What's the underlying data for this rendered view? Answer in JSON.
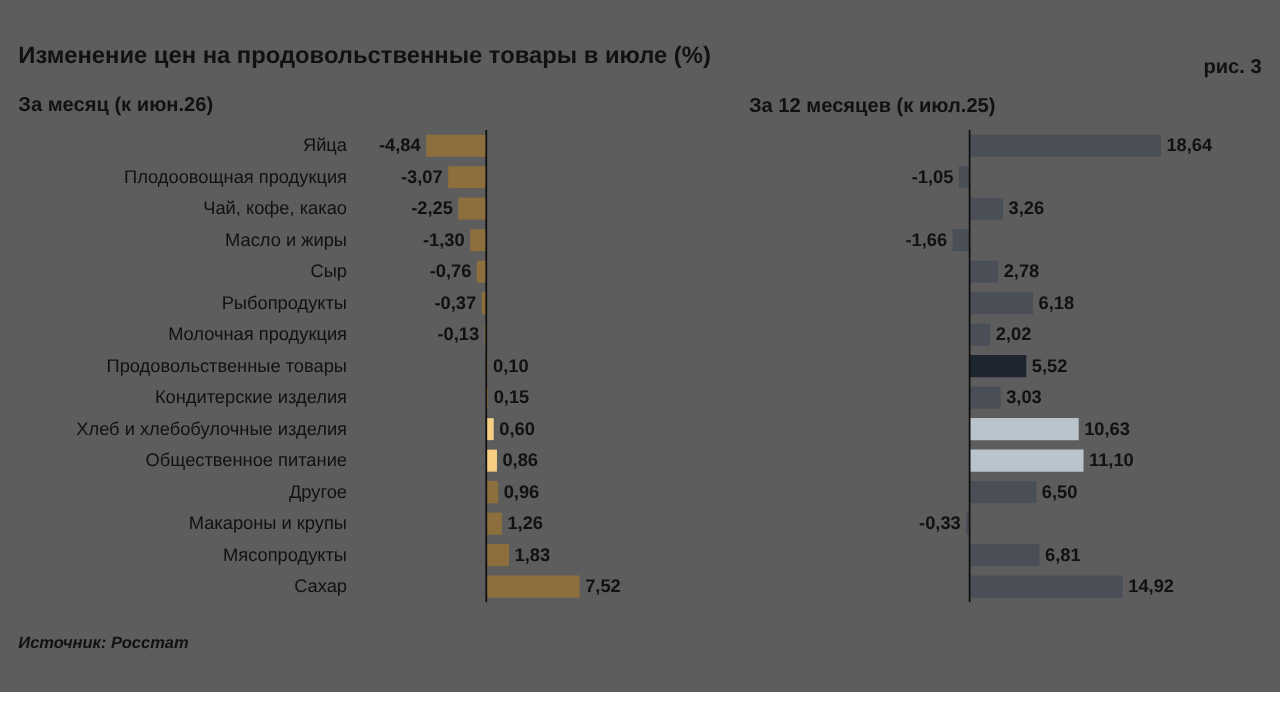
{
  "chart_data": [
    {
      "type": "bar",
      "orientation": "horizontal",
      "title": "Изменение цен на продовольственные товары в июле (%)",
      "subtitle": "За месяц (к июн.26)",
      "annotations": [
        "рис. 3",
        "Источник: Росстат"
      ],
      "tick_labels": "y",
      "categories": [
        "Яйца",
        "Плодоовощная продукция",
        "Чай, кофе, какао",
        "Масло и жиры",
        "Сыр",
        "Рыбопродукты",
        "Молочная продукция",
        "Продовольственные товары",
        "Кондитерские изделия",
        "Хлеб и хлебобулочные изделия",
        "Общественное питание",
        "Другое",
        "Макароны и крупы",
        "Мясопродукты",
        "Сахар"
      ],
      "values": [
        -4.84,
        -3.07,
        -2.25,
        -1.3,
        -0.76,
        -0.37,
        -0.13,
        0.1,
        0.15,
        0.6,
        0.86,
        0.96,
        1.26,
        1.83,
        7.52
      ],
      "value_labels": [
        "-4,84",
        "-3,07",
        "-2,25",
        "-1,30",
        "-0,76",
        "-0,37",
        "-0,13",
        "0,10",
        "0,15",
        "0,60",
        "0,86",
        "0,96",
        "1,26",
        "1,83",
        "7,52"
      ],
      "colors": [
        "#8c6f3c",
        "#8c6f3c",
        "#8c6f3c",
        "#8c6f3c",
        "#8c6f3c",
        "#8c6f3c",
        "#8c6f3c",
        "#8c6f3c",
        "#8c6f3c",
        "#f6cf83",
        "#f6cf83",
        "#8c6f3c",
        "#8c6f3c",
        "#8c6f3c",
        "#8c6f3c"
      ]
    },
    {
      "type": "bar",
      "orientation": "horizontal",
      "subtitle": "За 12 месяцев (к июл.25)",
      "tick_labels": false,
      "categories": [
        null,
        null,
        null,
        null,
        null,
        null,
        null,
        null,
        null,
        null,
        null,
        null,
        null,
        null,
        null
      ],
      "values": [
        18.64,
        -1.05,
        3.26,
        -1.66,
        2.78,
        6.18,
        2.02,
        5.52,
        3.03,
        10.63,
        11.1,
        6.5,
        -0.33,
        6.81,
        14.92
      ],
      "value_labels": [
        "18,64",
        "-1,05",
        "3,26",
        "-1,66",
        "2,78",
        "6,18",
        "2,02",
        "5,52",
        "3,03",
        "10,63",
        "11,10",
        "6,50",
        "-0,33",
        "6,81",
        "14,92"
      ],
      "colors": [
        "#4a4f57",
        "#4a4f57",
        "#4a4f57",
        "#4a4f57",
        "#4a4f57",
        "#4a4f57",
        "#4a4f57",
        "#1c2530",
        "#4a4f57",
        "#b9c4cc",
        "#b9c4cc",
        "#4a4f57",
        "#4a4f57",
        "#4a4f57",
        "#4a4f57"
      ]
    }
  ]
}
